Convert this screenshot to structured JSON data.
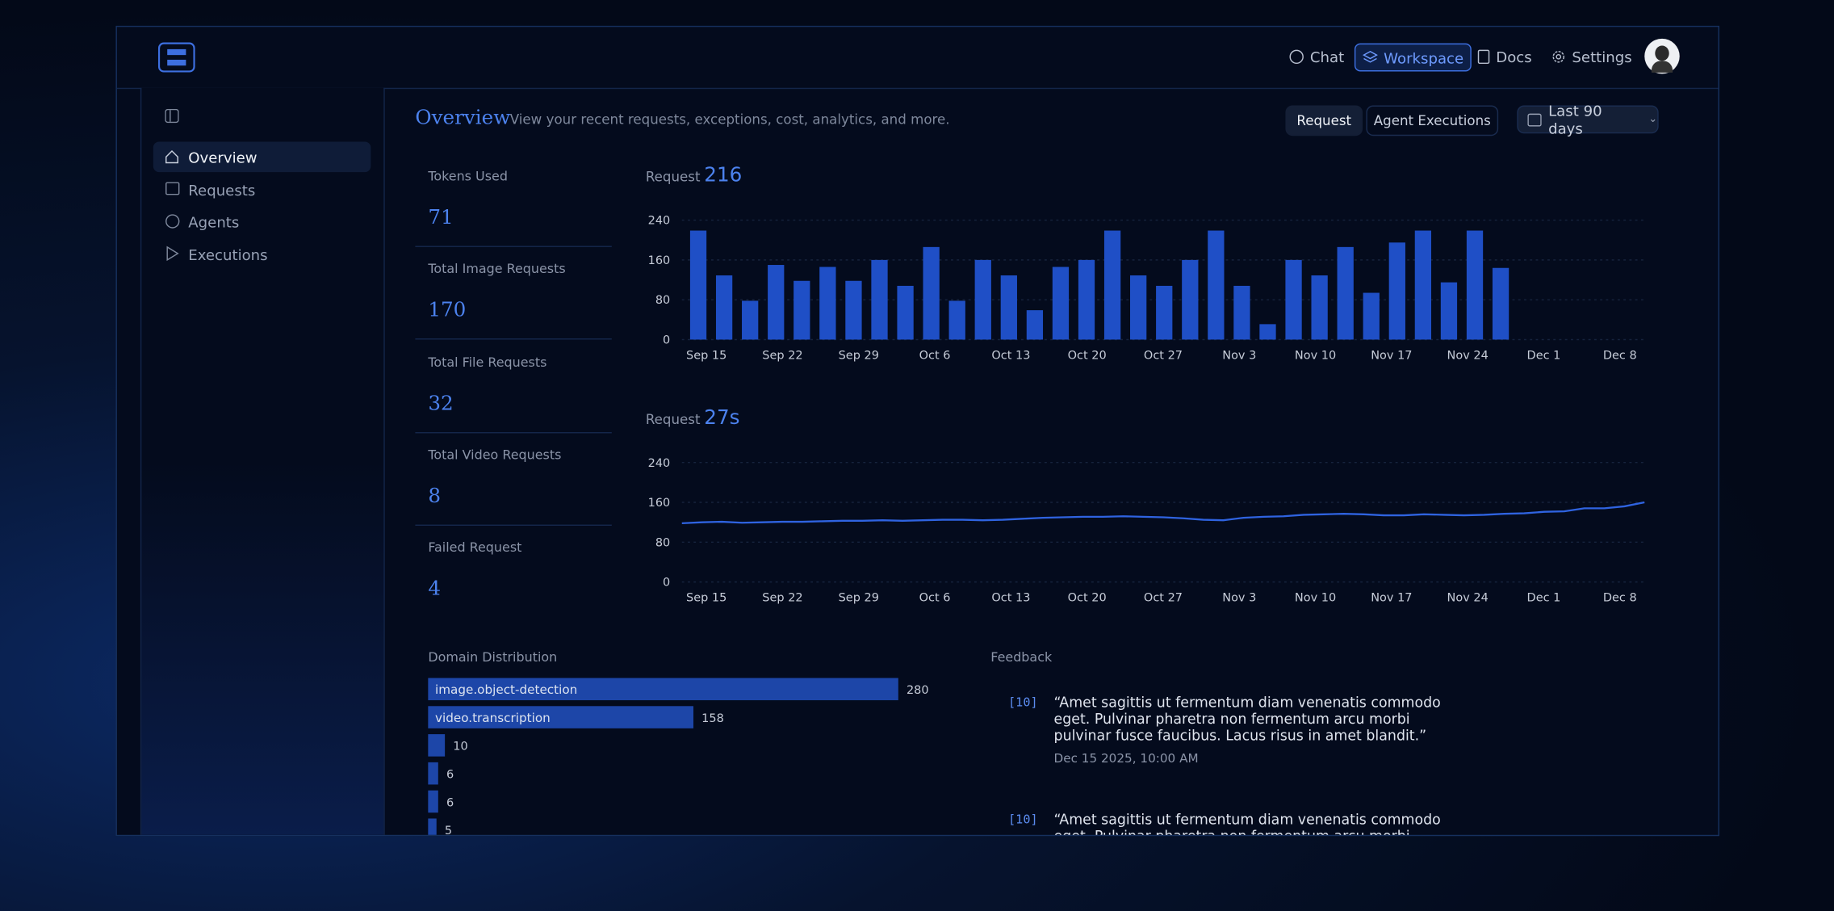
{
  "nav": {
    "items": [
      "Chat",
      "Workspace",
      "Docs",
      "Settings"
    ]
  },
  "sidebar": {
    "items": [
      "Overview",
      "Requests",
      "Agents",
      "Executions"
    ]
  },
  "header": {
    "title": "Overview",
    "subtitle": "View your recent requests, exceptions, cost, analytics, and more.",
    "tabs": [
      "Request",
      "Agent Executions"
    ],
    "range": "Last 90 days"
  },
  "stats": [
    {
      "label": "Tokens Used",
      "value": 71
    },
    {
      "label": "Total Image Requests",
      "value": 170
    },
    {
      "label": "Total File Requests",
      "value": 32
    },
    {
      "label": "Total Video Requests",
      "value": 8
    },
    {
      "label": "Failed Request",
      "value": 4
    }
  ],
  "requests_chart": {
    "type": "bar",
    "label": "Request",
    "total": 216,
    "color": "#1f4fc6",
    "values": [
      219,
      129,
      78,
      150,
      118,
      146,
      118,
      160,
      108,
      186,
      78,
      160,
      129,
      59,
      146,
      160,
      219,
      129,
      108,
      160,
      219,
      108,
      31,
      160,
      129,
      186,
      94,
      195,
      219,
      115,
      219,
      144
    ],
    "xtick_labels": [
      "Sep 15",
      "Sep 22",
      "Sep 29",
      "Oct 6",
      "Oct 13",
      "Oct 20",
      "Oct 27",
      "Nov 3",
      "Nov 10",
      "Nov 17",
      "Nov 24",
      "Dec 1",
      "Dec 8"
    ],
    "ylim": [
      0,
      240
    ],
    "yticks": [
      0,
      80,
      160,
      240
    ],
    "grid": true
  },
  "latency_chart": {
    "type": "line",
    "label": "Request",
    "total": "27s",
    "color": "#2f63e0",
    "values": [
      118,
      120,
      121,
      119,
      120,
      121,
      121,
      122,
      123,
      123,
      124,
      123,
      124,
      125,
      125,
      124,
      125,
      127,
      129,
      130,
      131,
      131,
      132,
      131,
      130,
      128,
      125,
      124,
      129,
      131,
      132,
      135,
      136,
      137,
      136,
      134,
      134,
      136,
      135,
      134,
      135,
      137,
      138,
      141,
      142,
      148,
      148,
      152,
      160
    ],
    "xtick_labels": [
      "Sep 15",
      "Sep 22",
      "Sep 29",
      "Oct 6",
      "Oct 13",
      "Oct 20",
      "Oct 27",
      "Nov 3",
      "Nov 10",
      "Nov 17",
      "Nov 24",
      "Dec 1",
      "Dec 8"
    ],
    "ylim": [
      0,
      240
    ],
    "yticks": [
      0,
      80,
      160,
      240
    ],
    "grid": true
  },
  "domain_chart": {
    "type": "hbar",
    "title": "Domain Distribution",
    "color": "#1d46a8",
    "categories": [
      "image.object-detection",
      "video.transcription",
      null,
      null,
      null,
      null
    ],
    "values": [
      280,
      158,
      10,
      6,
      6,
      5
    ]
  },
  "feedback": {
    "title": "Feedback",
    "items": [
      {
        "score": "[10]",
        "text": "“Amet sagittis ut fermentum diam venenatis commodo eget. Pulvinar pharetra non fermentum arcu morbi pulvinar fusce faucibus. Lacus risus in amet blandit.”",
        "date": "Dec 15 2025, 10:00 AM"
      },
      {
        "score": "[10]",
        "text": "“Amet sagittis ut fermentum diam venenatis commodo eget. Pulvinar pharetra non fermentum arcu morbi pulvinar fusce faucibus. Lacus risus in amet blandit.”"
      }
    ]
  }
}
